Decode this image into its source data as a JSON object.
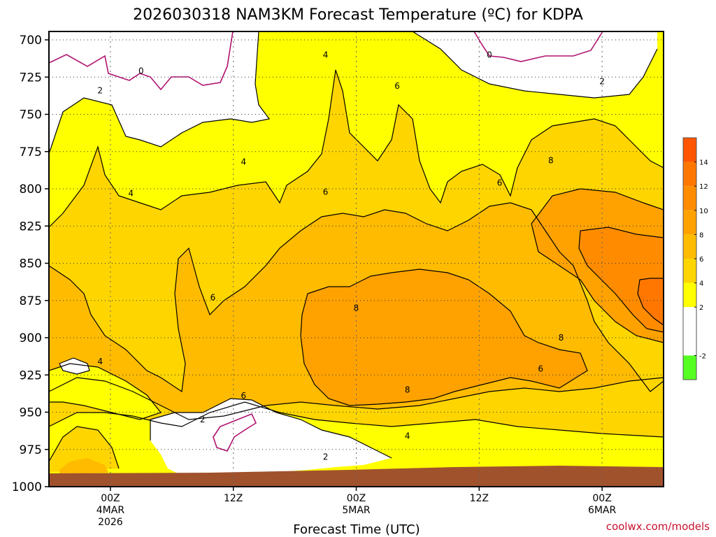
{
  "chart_data": {
    "type": "heatmap",
    "title": "2026030318 NAM3KM Forecast Temperature (ºC) for KDPA",
    "xlabel": "Forecast Time (UTC)",
    "ylabel": "",
    "y_axis": {
      "ticks": [
        "700",
        "725",
        "750",
        "775",
        "800",
        "825",
        "850",
        "875",
        "900",
        "925",
        "950",
        "975",
        "1000"
      ],
      "ylim": [
        1000,
        700
      ]
    },
    "x_axis": {
      "hours_range": [
        -6,
        54
      ],
      "ticks": [
        {
          "hour": 0,
          "lines": [
            "00Z",
            "4MAR",
            "2026"
          ]
        },
        {
          "hour": 12,
          "lines": [
            "12Z"
          ]
        },
        {
          "hour": 24,
          "lines": [
            "00Z",
            "5MAR"
          ]
        },
        {
          "hour": 36,
          "lines": [
            "12Z"
          ]
        },
        {
          "hour": 48,
          "lines": [
            "00Z",
            "6MAR"
          ]
        }
      ]
    },
    "colorbar": {
      "ticks": [
        "14",
        "12",
        "10",
        "8",
        "6",
        "4",
        "2",
        "-2"
      ],
      "bands": [
        {
          "range": [
            14,
            16
          ],
          "color": "#ff5500"
        },
        {
          "range": [
            12,
            14
          ],
          "color": "#ff7700"
        },
        {
          "range": [
            10,
            12
          ],
          "color": "#ff8c00"
        },
        {
          "range": [
            8,
            10
          ],
          "color": "#ffa200"
        },
        {
          "range": [
            6,
            8
          ],
          "color": "#ffbb00"
        },
        {
          "range": [
            4,
            6
          ],
          "color": "#ffd500"
        },
        {
          "range": [
            2,
            4
          ],
          "color": "#ffff00"
        },
        {
          "range": [
            -2,
            2
          ],
          "color": "#ffffff"
        },
        {
          "range": [
            -4,
            -2
          ],
          "color": "#55ff22"
        }
      ]
    },
    "contour_labels": [
      {
        "text": "0",
        "hour": 3,
        "p": 721
      },
      {
        "text": "0",
        "hour": 37,
        "p": 710
      },
      {
        "text": "2",
        "hour": -1,
        "p": 734
      },
      {
        "text": "2",
        "hour": 48,
        "p": 728
      },
      {
        "text": "2",
        "hour": 9,
        "p": 955
      },
      {
        "text": "2",
        "hour": 21,
        "p": 980
      },
      {
        "text": "4",
        "hour": 21,
        "p": 710
      },
      {
        "text": "4",
        "hour": 13,
        "p": 782
      },
      {
        "text": "4",
        "hour": 2,
        "p": 803
      },
      {
        "text": "4",
        "hour": -1,
        "p": 916
      },
      {
        "text": "4",
        "hour": 29,
        "p": 966
      },
      {
        "text": "6",
        "hour": 28,
        "p": 731
      },
      {
        "text": "6",
        "hour": 38,
        "p": 796
      },
      {
        "text": "6",
        "hour": 21,
        "p": 802
      },
      {
        "text": "6",
        "hour": 10,
        "p": 873
      },
      {
        "text": "6",
        "hour": 13,
        "p": 939
      },
      {
        "text": "6",
        "hour": 42,
        "p": 921
      },
      {
        "text": "8",
        "hour": 43,
        "p": 781
      },
      {
        "text": "8",
        "hour": 24,
        "p": 880
      },
      {
        "text": "8",
        "hour": 44,
        "p": 900
      },
      {
        "text": "8",
        "hour": 29,
        "p": 935
      }
    ]
  },
  "footer": {
    "credit": "coolwx.com/models"
  }
}
